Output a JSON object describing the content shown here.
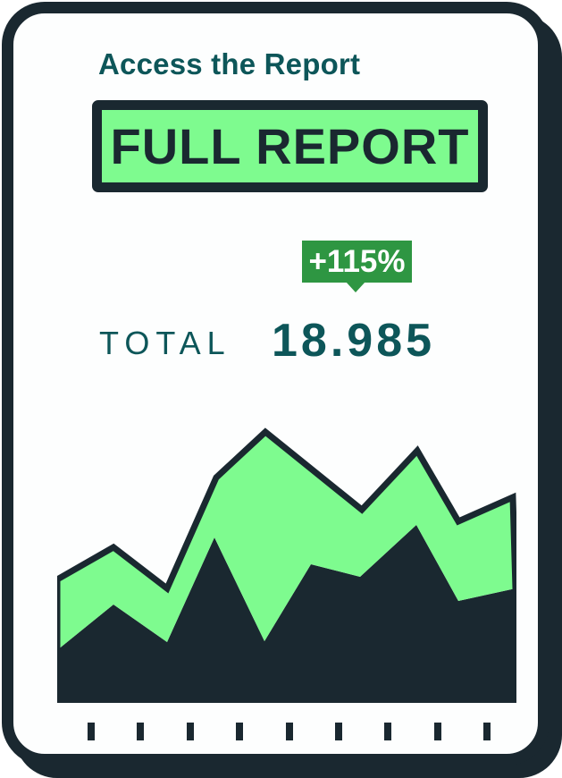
{
  "colors": {
    "dark": "#1a2830",
    "green": "#7efb8f",
    "badge_green": "#2e9642",
    "teal": "#0d5659",
    "badge_text": "#ffffff",
    "card_bg": "#fdfefe"
  },
  "card": {
    "title": "Access the Report",
    "button_label": "FULL REPORT",
    "badge_label": "+115%",
    "total_label": "TOTAL",
    "total_value": "18.985"
  },
  "chart_data": {
    "type": "area",
    "title": "",
    "xlabel": "",
    "ylabel": "",
    "legend": "none",
    "grid": false,
    "x_max": 513,
    "y_max": 311,
    "baseline": 0,
    "x_axis_tick_count": 9,
    "series": [
      {
        "name": "upper-green-band",
        "color_key": "green",
        "outlined": true,
        "points": [
          [
            0,
            138
          ],
          [
            63,
            174
          ],
          [
            123,
            128
          ],
          [
            178,
            252
          ],
          [
            233,
            303
          ],
          [
            341,
            216
          ],
          [
            403,
            282
          ],
          [
            449,
            203
          ],
          [
            510,
            230
          ],
          [
            513,
            128
          ]
        ]
      },
      {
        "name": "lower-dark-mountain",
        "color_key": "dark",
        "outlined": false,
        "points": [
          [
            0,
            59
          ],
          [
            63,
            110
          ],
          [
            123,
            68
          ],
          [
            176,
            185
          ],
          [
            232,
            69
          ],
          [
            284,
            155
          ],
          [
            339,
            141
          ],
          [
            402,
            199
          ],
          [
            449,
            114
          ],
          [
            513,
            128
          ]
        ]
      }
    ]
  }
}
